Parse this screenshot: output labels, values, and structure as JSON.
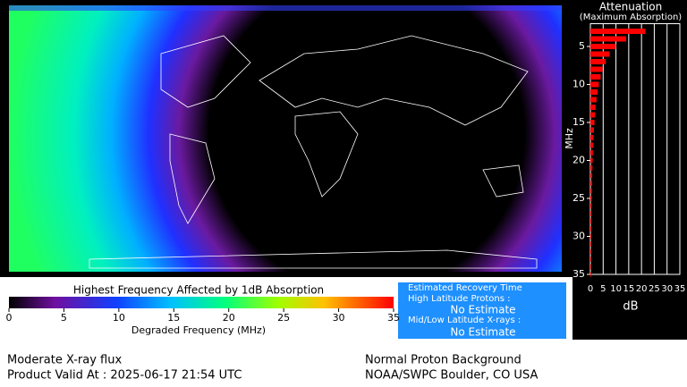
{
  "chart_data": {
    "type": "hbar",
    "title": "Attenuation",
    "subtitle": "(Maximum Absorption)",
    "y_label": "MHz",
    "x_label": "dB",
    "categories": [
      3,
      4,
      5,
      6,
      7,
      8,
      9,
      10,
      11,
      12,
      13,
      14,
      15,
      16,
      17,
      18,
      19,
      20,
      21,
      22,
      23,
      24,
      25,
      26,
      27,
      28,
      29,
      30,
      31,
      32,
      33,
      34,
      35
    ],
    "values": [
      21.5,
      14,
      10,
      7.5,
      6,
      4.8,
      4,
      3.3,
      2.8,
      2.4,
      2,
      1.8,
      1.6,
      1.4,
      1.2,
      1.1,
      1,
      0.9,
      0.8,
      0.7,
      0.65,
      0.6,
      0.55,
      0.5,
      0.47,
      0.44,
      0.41,
      0.38,
      0.36,
      0.34,
      0.32,
      0.3,
      0.28
    ],
    "color": "#ff0000",
    "ylim": [
      2,
      35
    ],
    "yticks": [
      5,
      10,
      15,
      20,
      25,
      30,
      35
    ],
    "xlim": [
      0,
      35
    ],
    "xticks": [
      0,
      5,
      10,
      15,
      20,
      25,
      30,
      35
    ],
    "grid": true
  },
  "colorbar": {
    "title": "Highest Frequency Affected by 1dB Absorption",
    "label": "Degraded Frequency (MHz)",
    "lim": [
      0,
      35
    ],
    "ticks": [
      0,
      5,
      10,
      15,
      20,
      25,
      30,
      35
    ]
  },
  "recovery": {
    "title": "Estimated Recovery Time",
    "high_label": "High Latitude Protons :",
    "high_value": "No Estimate",
    "low_label": "Mid/Low Latitude X-rays :",
    "low_value": "No Estimate"
  },
  "footer": {
    "left_1": "Moderate X-ray flux",
    "left_2": "Product Valid At : 2025-06-17 21:54 UTC",
    "right_1": "Normal Proton Background",
    "right_2": "NOAA/SWPC Boulder, CO USA"
  }
}
